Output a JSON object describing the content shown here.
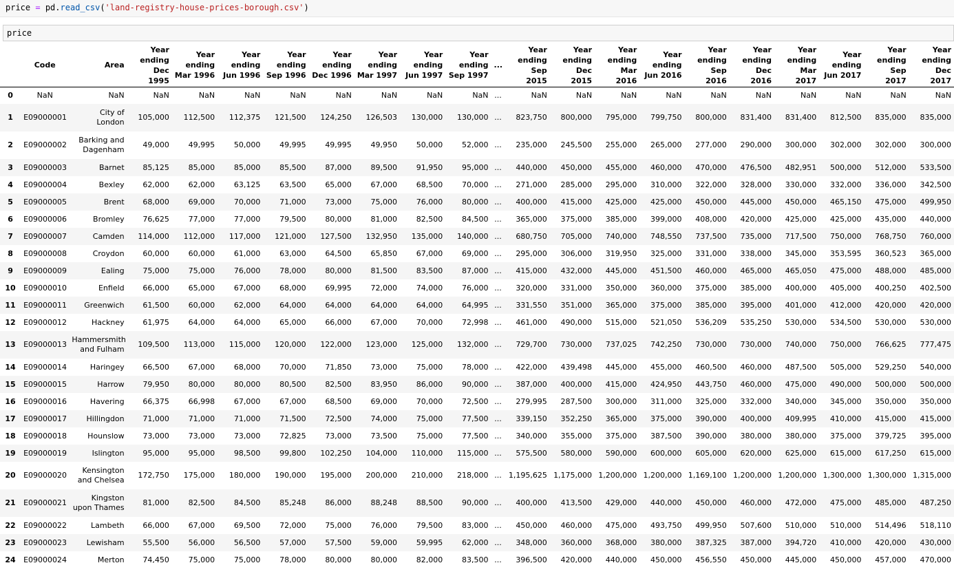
{
  "cell1": {
    "var": "price",
    "op": "=",
    "obj": "pd.",
    "func": "read_csv",
    "open": "(",
    "str": "'land-registry-house-prices-borough.csv'",
    "close": ")"
  },
  "cell2": {
    "text": "price"
  },
  "table": {
    "columns": [
      "",
      "Code",
      "Area",
      "Year ending Dec 1995",
      "Year ending Mar 1996",
      "Year ending Jun 1996",
      "Year ending Sep 1996",
      "Year ending Dec 1996",
      "Year ending Mar 1997",
      "Year ending Jun 1997",
      "Year ending Sep 1997",
      "...",
      "Year ending Sep 2015",
      "Year ending Dec 2015",
      "Year ending Mar 2016",
      "Year ending Jun 2016",
      "Year ending Sep 2016",
      "Year ending Dec 2016",
      "Year ending Mar 2017",
      "Year ending Jun 2017",
      "Year ending Sep 2017",
      "Year ending Dec 2017"
    ],
    "rows": [
      [
        "0",
        "NaN",
        "NaN",
        "NaN",
        "NaN",
        "NaN",
        "NaN",
        "NaN",
        "NaN",
        "NaN",
        "NaN",
        "...",
        "NaN",
        "NaN",
        "NaN",
        "NaN",
        "NaN",
        "NaN",
        "NaN",
        "NaN",
        "NaN",
        "NaN"
      ],
      [
        "1",
        "E09000001",
        "City of London",
        "105,000",
        "112,500",
        "112,375",
        "121,500",
        "124,250",
        "126,503",
        "130,000",
        "130,000",
        "...",
        "823,750",
        "800,000",
        "795,000",
        "799,750",
        "800,000",
        "831,400",
        "831,400",
        "812,500",
        "835,000",
        "835,000"
      ],
      [
        "2",
        "E09000002",
        "Barking and Dagenham",
        "49,000",
        "49,995",
        "50,000",
        "49,995",
        "49,995",
        "49,950",
        "50,000",
        "52,000",
        "...",
        "235,000",
        "245,500",
        "255,000",
        "265,000",
        "277,000",
        "290,000",
        "300,000",
        "302,000",
        "302,000",
        "300,000"
      ],
      [
        "3",
        "E09000003",
        "Barnet",
        "85,125",
        "85,000",
        "85,000",
        "85,500",
        "87,000",
        "89,500",
        "91,950",
        "95,000",
        "...",
        "440,000",
        "450,000",
        "455,000",
        "460,000",
        "470,000",
        "476,500",
        "482,951",
        "500,000",
        "512,000",
        "533,500"
      ],
      [
        "4",
        "E09000004",
        "Bexley",
        "62,000",
        "62,000",
        "63,125",
        "63,500",
        "65,000",
        "67,000",
        "68,500",
        "70,000",
        "...",
        "271,000",
        "285,000",
        "295,000",
        "310,000",
        "322,000",
        "328,000",
        "330,000",
        "332,000",
        "336,000",
        "342,500"
      ],
      [
        "5",
        "E09000005",
        "Brent",
        "68,000",
        "69,000",
        "70,000",
        "71,000",
        "73,000",
        "75,000",
        "76,000",
        "80,000",
        "...",
        "400,000",
        "415,000",
        "425,000",
        "425,000",
        "450,000",
        "445,000",
        "450,000",
        "465,150",
        "475,000",
        "499,950"
      ],
      [
        "6",
        "E09000006",
        "Bromley",
        "76,625",
        "77,000",
        "77,000",
        "79,500",
        "80,000",
        "81,000",
        "82,500",
        "84,500",
        "...",
        "365,000",
        "375,000",
        "385,000",
        "399,000",
        "408,000",
        "420,000",
        "425,000",
        "425,000",
        "435,000",
        "440,000"
      ],
      [
        "7",
        "E09000007",
        "Camden",
        "114,000",
        "112,000",
        "117,000",
        "121,000",
        "127,500",
        "132,950",
        "135,000",
        "140,000",
        "...",
        "680,750",
        "705,000",
        "740,000",
        "748,550",
        "737,500",
        "735,000",
        "717,500",
        "750,000",
        "768,750",
        "760,000"
      ],
      [
        "8",
        "E09000008",
        "Croydon",
        "60,000",
        "60,000",
        "61,000",
        "63,000",
        "64,500",
        "65,850",
        "67,000",
        "69,000",
        "...",
        "295,000",
        "306,000",
        "319,950",
        "325,000",
        "331,000",
        "338,000",
        "345,000",
        "353,595",
        "360,523",
        "365,000"
      ],
      [
        "9",
        "E09000009",
        "Ealing",
        "75,000",
        "75,000",
        "76,000",
        "78,000",
        "80,000",
        "81,500",
        "83,500",
        "87,000",
        "...",
        "415,000",
        "432,000",
        "445,000",
        "451,500",
        "460,000",
        "465,000",
        "465,050",
        "475,000",
        "488,000",
        "485,000"
      ],
      [
        "10",
        "E09000010",
        "Enfield",
        "66,000",
        "65,000",
        "67,000",
        "68,000",
        "69,995",
        "72,000",
        "74,000",
        "76,000",
        "...",
        "320,000",
        "331,000",
        "350,000",
        "360,000",
        "375,000",
        "385,000",
        "400,000",
        "405,000",
        "400,250",
        "402,500"
      ],
      [
        "11",
        "E09000011",
        "Greenwich",
        "61,500",
        "60,000",
        "62,000",
        "64,000",
        "64,000",
        "64,000",
        "64,000",
        "64,995",
        "...",
        "331,550",
        "351,000",
        "365,000",
        "375,000",
        "385,000",
        "395,000",
        "401,000",
        "412,000",
        "420,000",
        "420,000"
      ],
      [
        "12",
        "E09000012",
        "Hackney",
        "61,975",
        "64,000",
        "64,000",
        "65,000",
        "66,000",
        "67,000",
        "70,000",
        "72,998",
        "...",
        "461,000",
        "490,000",
        "515,000",
        "521,050",
        "536,209",
        "535,250",
        "530,000",
        "534,500",
        "530,000",
        "530,000"
      ],
      [
        "13",
        "E09000013",
        "Hammersmith and Fulham",
        "109,500",
        "113,000",
        "115,000",
        "120,000",
        "122,000",
        "123,000",
        "125,000",
        "132,000",
        "...",
        "729,700",
        "730,000",
        "737,025",
        "742,250",
        "730,000",
        "730,000",
        "740,000",
        "750,000",
        "766,625",
        "777,475"
      ],
      [
        "14",
        "E09000014",
        "Haringey",
        "66,500",
        "67,000",
        "68,000",
        "70,000",
        "71,850",
        "73,000",
        "75,000",
        "78,000",
        "...",
        "422,000",
        "439,498",
        "445,000",
        "455,000",
        "460,500",
        "460,000",
        "487,500",
        "505,000",
        "529,250",
        "540,000"
      ],
      [
        "15",
        "E09000015",
        "Harrow",
        "79,950",
        "80,000",
        "80,000",
        "80,500",
        "82,500",
        "83,950",
        "86,000",
        "90,000",
        "...",
        "387,000",
        "400,000",
        "415,000",
        "424,950",
        "443,750",
        "460,000",
        "475,000",
        "490,000",
        "500,000",
        "500,000"
      ],
      [
        "16",
        "E09000016",
        "Havering",
        "66,375",
        "66,998",
        "67,000",
        "67,000",
        "68,500",
        "69,000",
        "70,000",
        "72,500",
        "...",
        "279,995",
        "287,500",
        "300,000",
        "311,000",
        "325,000",
        "332,000",
        "340,000",
        "345,000",
        "350,000",
        "350,000"
      ],
      [
        "17",
        "E09000017",
        "Hillingdon",
        "71,000",
        "71,000",
        "71,000",
        "71,500",
        "72,500",
        "74,000",
        "75,000",
        "77,500",
        "...",
        "339,150",
        "352,250",
        "365,000",
        "375,000",
        "390,000",
        "400,000",
        "409,995",
        "410,000",
        "415,000",
        "415,000"
      ],
      [
        "18",
        "E09000018",
        "Hounslow",
        "73,000",
        "73,000",
        "73,000",
        "72,825",
        "73,000",
        "73,500",
        "75,000",
        "77,500",
        "...",
        "340,000",
        "355,000",
        "375,000",
        "387,500",
        "390,000",
        "380,000",
        "380,000",
        "375,000",
        "379,725",
        "395,000"
      ],
      [
        "19",
        "E09000019",
        "Islington",
        "95,000",
        "95,000",
        "98,500",
        "99,800",
        "102,250",
        "104,000",
        "110,000",
        "115,000",
        "...",
        "575,500",
        "580,000",
        "590,000",
        "600,000",
        "605,000",
        "620,000",
        "625,000",
        "615,000",
        "617,250",
        "615,000"
      ],
      [
        "20",
        "E09000020",
        "Kensington and Chelsea",
        "172,750",
        "175,000",
        "180,000",
        "190,000",
        "195,000",
        "200,000",
        "210,000",
        "218,000",
        "...",
        "1,195,625",
        "1,175,000",
        "1,200,000",
        "1,200,000",
        "1,169,100",
        "1,200,000",
        "1,200,000",
        "1,300,000",
        "1,300,000",
        "1,315,000"
      ],
      [
        "21",
        "E09000021",
        "Kingston upon Thames",
        "81,000",
        "82,500",
        "84,500",
        "85,248",
        "86,000",
        "88,248",
        "88,500",
        "90,000",
        "...",
        "400,000",
        "413,500",
        "429,000",
        "440,000",
        "450,000",
        "460,000",
        "472,000",
        "475,000",
        "485,000",
        "487,250"
      ],
      [
        "22",
        "E09000022",
        "Lambeth",
        "66,000",
        "67,000",
        "69,500",
        "72,000",
        "75,000",
        "76,000",
        "79,500",
        "83,000",
        "...",
        "450,000",
        "460,000",
        "475,000",
        "493,750",
        "499,950",
        "507,600",
        "510,000",
        "510,000",
        "514,496",
        "518,110"
      ],
      [
        "23",
        "E09000023",
        "Lewisham",
        "55,500",
        "56,000",
        "56,500",
        "57,000",
        "57,500",
        "59,000",
        "59,995",
        "62,000",
        "...",
        "348,000",
        "360,000",
        "368,000",
        "380,000",
        "387,325",
        "387,000",
        "394,720",
        "410,000",
        "420,000",
        "430,000"
      ],
      [
        "24",
        "E09000024",
        "Merton",
        "74,450",
        "75,000",
        "75,000",
        "78,000",
        "80,000",
        "80,000",
        "82,000",
        "83,500",
        "...",
        "396,500",
        "420,000",
        "440,000",
        "450,000",
        "456,550",
        "450,000",
        "445,000",
        "450,000",
        "457,000",
        "470,000"
      ]
    ]
  }
}
